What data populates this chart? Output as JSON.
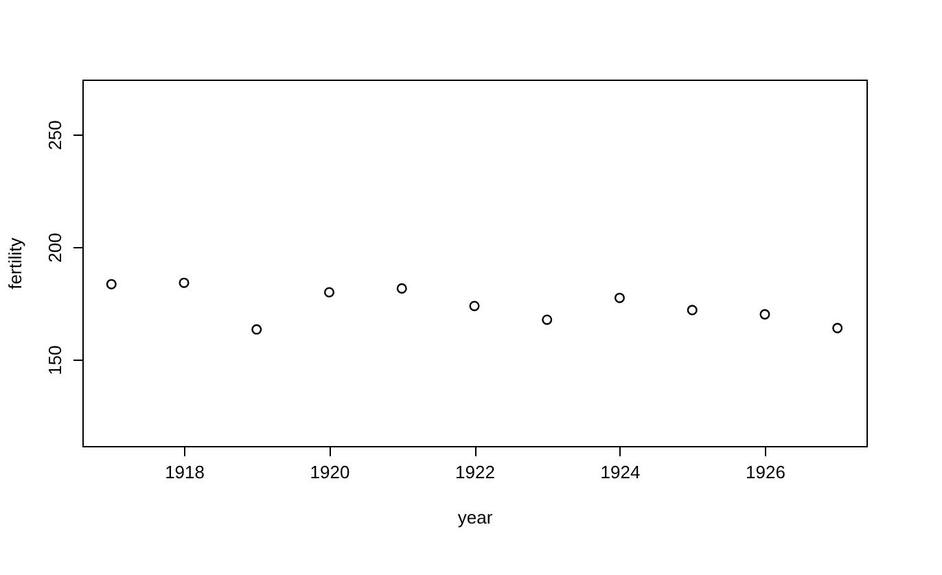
{
  "chart_data": {
    "type": "scatter",
    "xlabel": "year",
    "ylabel": "fertility",
    "x": [
      1917,
      1918,
      1919,
      1920,
      1921,
      1922,
      1923,
      1924,
      1925,
      1926,
      1927
    ],
    "values": [
      183.5,
      184.1,
      163.4,
      179.9,
      181.6,
      173.8,
      167.7,
      177.4,
      172.0,
      170.1,
      164.0
    ],
    "color": "#000000",
    "marker": "circle",
    "xlim": [
      1916.6,
      1927.4
    ],
    "xticks": [
      1918,
      1920,
      1922,
      1924,
      1926
    ],
    "ylim": [
      111.6,
      274.4
    ],
    "yticks": [
      150,
      200,
      250
    ],
    "grid": false
  }
}
